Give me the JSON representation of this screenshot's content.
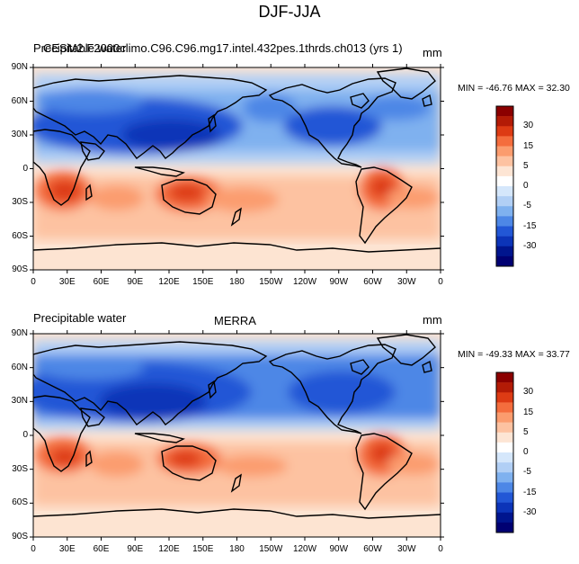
{
  "figure": {
    "title": "DJF-JJA"
  },
  "panels": [
    {
      "left_title": "Precipitable water",
      "center_title": "CESM2.F2000climo.C96.C96.mg17.intel.432pes.1thrds.ch013 (yrs 1)",
      "units": "mm",
      "stats": "MIN = -46.76 MAX =  32.30"
    },
    {
      "left_title": "Precipitable water",
      "center_title": "MERRA",
      "units": "mm",
      "stats": "MIN = -49.33 MAX =  33.77"
    }
  ],
  "axes": {
    "lat_ticks": [
      "90N",
      "60N",
      "30N",
      "0",
      "30S",
      "60S",
      "90S"
    ],
    "lon_ticks": [
      "0",
      "30E",
      "60E",
      "90E",
      "120E",
      "150E",
      "180",
      "150W",
      "120W",
      "90W",
      "60W",
      "30W",
      "0"
    ]
  },
  "colorbar": {
    "labels": [
      "30",
      "15",
      "5",
      "0",
      "-5",
      "-15",
      "-30"
    ],
    "colors": [
      "#8b0000",
      "#b31b06",
      "#dd3b14",
      "#f46d3d",
      "#fb9c6e",
      "#fdc2a1",
      "#fde5d4",
      "#ffffff",
      "#d5e7fb",
      "#b1cff5",
      "#7fb1ef",
      "#4d87e6",
      "#2257d6",
      "#0c34b8",
      "#00158e",
      "#000072"
    ]
  },
  "colors": {
    "ocean_neutral": "#fde4d2",
    "deep_blue": "#0c34b8",
    "mid_blue": "#4d87e6",
    "light_blue": "#b1cff5",
    "red": "#dd3b14",
    "orange": "#f46d3d",
    "salmon": "#fb9c6e",
    "peach": "#fdc2a1",
    "coast": "#000000"
  }
}
